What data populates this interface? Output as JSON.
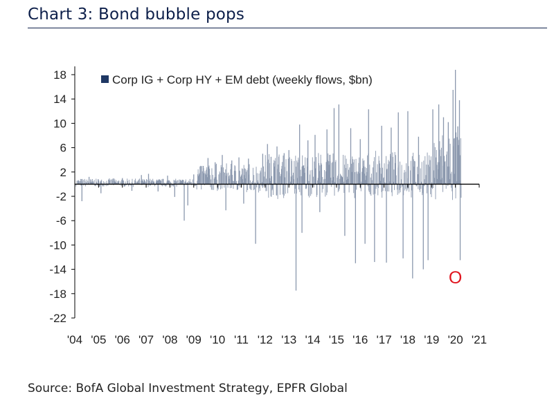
{
  "title": "Chart 3: Bond bubble pops",
  "source": "Source: BofA Global Investment Strategy, EPFR Global",
  "colors": {
    "title": "#0d1f4a",
    "bars": "#8a97ad",
    "legend_swatch": "#1f3864",
    "axis": "#000000",
    "marker": "#e0141e"
  },
  "annotation": "O",
  "chart_data": {
    "type": "bar",
    "title": "Chart 3: Bond bubble pops",
    "legend": [
      "Corp IG + Corp HY + EM debt (weekly flows, $bn)"
    ],
    "legend_placement": "top-left",
    "grid": false,
    "xlabel": "",
    "ylabel": "",
    "ylim": [
      -22,
      20
    ],
    "yticks": [
      18,
      14,
      10,
      6,
      2,
      -2,
      -6,
      -10,
      -14,
      -18,
      -22
    ],
    "xlim": [
      2004.0,
      2021.0
    ],
    "xticks": [
      "'04",
      "'05",
      "'06",
      "'07",
      "'08",
      "'09",
      "'10",
      "'11",
      "'12",
      "'13",
      "'14",
      "'15",
      "'16",
      "'17",
      "'18",
      "'19",
      "'20",
      "'21"
    ],
    "series": [
      {
        "name": "Corp IG + Corp HY + EM debt (weekly flows, $bn)",
        "x": [
          2004.3,
          2004.6,
          2005.1,
          2005.6,
          2006.0,
          2006.4,
          2006.8,
          2007.1,
          2007.5,
          2007.9,
          2008.2,
          2008.6,
          2008.75,
          2009.0,
          2009.4,
          2009.6,
          2009.9,
          2010.2,
          2010.35,
          2010.6,
          2010.9,
          2011.1,
          2011.3,
          2011.6,
          2011.9,
          2012.1,
          2012.25,
          2012.5,
          2012.8,
          2013.0,
          2013.3,
          2013.45,
          2013.55,
          2013.8,
          2014.1,
          2014.3,
          2014.6,
          2014.9,
          2015.1,
          2015.35,
          2015.6,
          2015.8,
          2016.0,
          2016.2,
          2016.35,
          2016.6,
          2016.9,
          2017.1,
          2017.3,
          2017.6,
          2017.8,
          2018.0,
          2018.2,
          2018.45,
          2018.65,
          2018.85,
          2019.05,
          2019.3,
          2019.5,
          2019.7,
          2019.9,
          2020.0,
          2020.1,
          2020.17,
          2020.2
        ],
        "values": [
          -2.8,
          1.2,
          -1.5,
          0.9,
          1.0,
          -1.1,
          1.5,
          1.7,
          -1.2,
          1.4,
          -2.1,
          -6.0,
          -3.5,
          1.6,
          3.0,
          4.3,
          3.6,
          4.8,
          -4.3,
          3.9,
          4.4,
          -3.2,
          4.2,
          -9.8,
          5.0,
          6.6,
          4.5,
          6.2,
          5.1,
          5.6,
          -17.5,
          9.8,
          -8.0,
          7.2,
          8.1,
          -4.6,
          9.0,
          12.5,
          13.1,
          -8.5,
          9.2,
          -13.0,
          7.4,
          -9.8,
          12.3,
          -12.8,
          9.6,
          -12.9,
          9.3,
          11.8,
          -12.2,
          12.0,
          -15.5,
          7.8,
          -14.0,
          -12.5,
          12.3,
          13.1,
          11.0,
          10.2,
          15.5,
          18.8,
          9.5,
          13.8,
          -12.5
        ]
      }
    ]
  }
}
